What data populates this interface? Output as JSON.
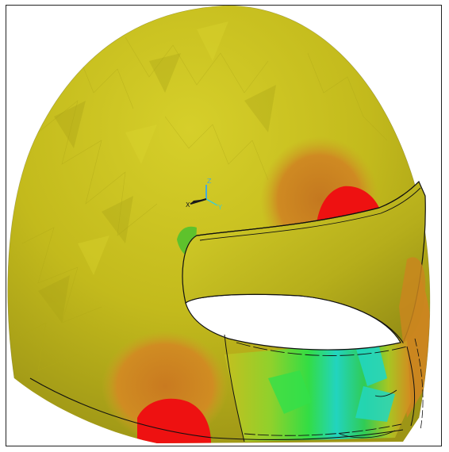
{
  "viewport": {
    "background": "#ffffff",
    "frame_color": "#222222"
  },
  "model": {
    "contour_colors": {
      "base": "#c9bf1e",
      "base_light": "#d9d22a",
      "base_dark": "#a8a118",
      "orange": "#d48a20",
      "orange_dark": "#c07422",
      "red": "#ee1111",
      "green": "#44cc33",
      "bright_green": "#22ee33",
      "cyan": "#22d6c0",
      "visor": "#cfc11e"
    }
  },
  "triad": {
    "x_label": "X",
    "y_label": "Y",
    "z_label": "Z",
    "x_color": "#1a1a1a",
    "y_color": "#44cccc",
    "z_color": "#44aadd"
  }
}
